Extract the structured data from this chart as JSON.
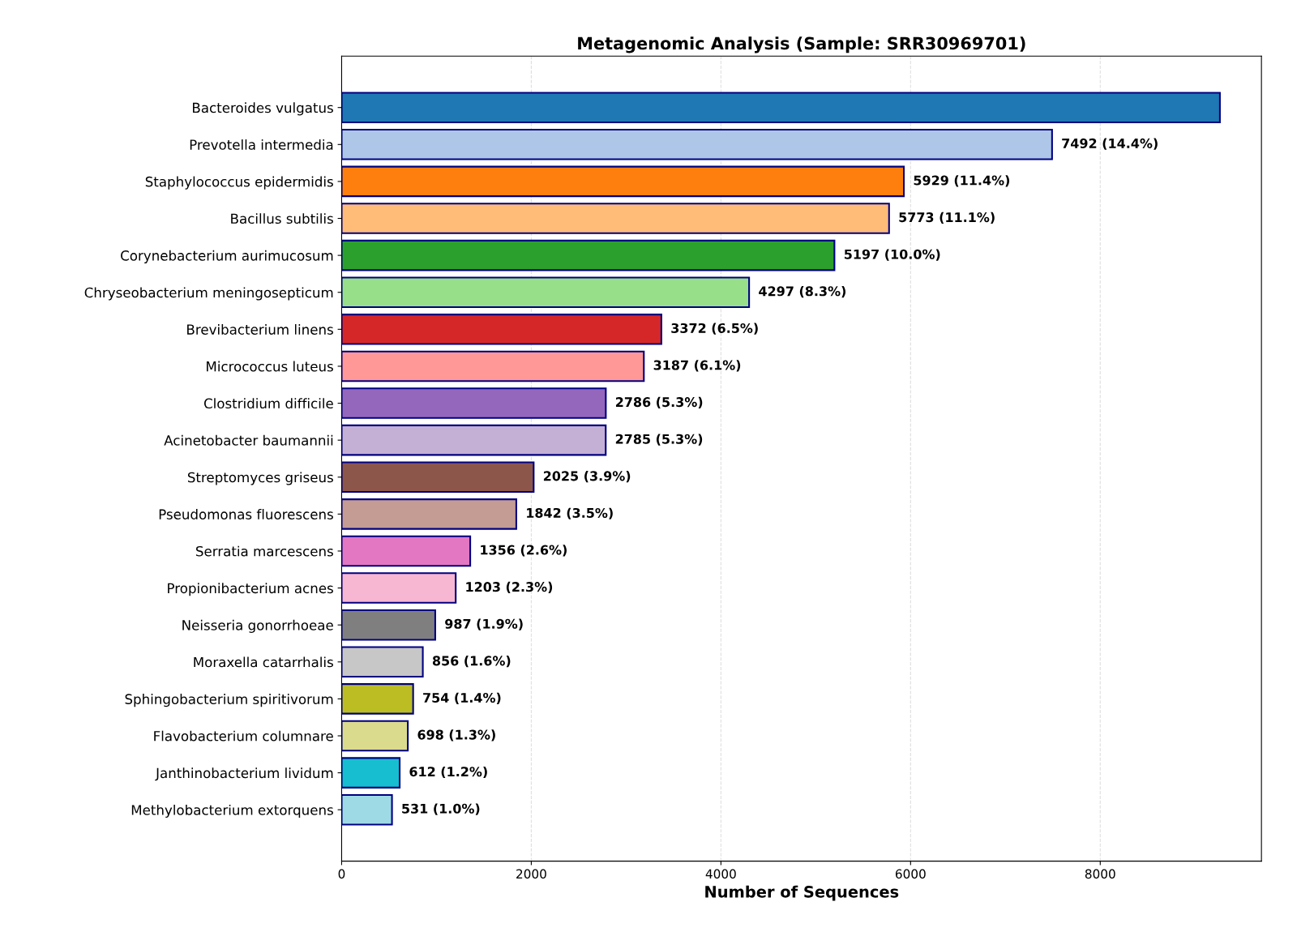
{
  "chart_data": {
    "type": "bar",
    "orientation": "horizontal",
    "title": "Metagenomic Analysis (Sample: SRR30969701)",
    "xlabel": "Number of Sequences",
    "categories": [
      "Bacteroides vulgatus",
      "Prevotella intermedia",
      "Staphylococcus epidermidis",
      "Bacillus subtilis",
      "Corynebacterium aurimucosum",
      "Chryseobacterium meningosepticum",
      "Brevibacterium linens",
      "Micrococcus luteus",
      "Clostridium difficile",
      "Acinetobacter baumannii",
      "Streptomyces griseus",
      "Pseudomonas fluorescens",
      "Serratia marcescens",
      "Propionibacterium acnes",
      "Neisseria gonorrhoeae",
      "Moraxella catarrhalis",
      "Sphingobacterium spiritivorum",
      "Flavobacterium columnare",
      "Janthinobacterium lividum",
      "Methylobacterium extorquens"
    ],
    "values": [
      9262,
      7492,
      5929,
      5773,
      5197,
      4297,
      3372,
      3187,
      2786,
      2785,
      2025,
      1842,
      1356,
      1203,
      987,
      856,
      754,
      698,
      612,
      531
    ],
    "colors": [
      "#1f77b4",
      "#aec7e8",
      "#ff7f0e",
      "#ffbb78",
      "#2ca02c",
      "#98df8a",
      "#d62728",
      "#ff9896",
      "#9467bd",
      "#c5b0d5",
      "#8c564b",
      "#c49c94",
      "#e377c2",
      "#f7b6d2",
      "#7f7f7f",
      "#c7c7c7",
      "#bcbd22",
      "#dbdb8d",
      "#17becf",
      "#9edae5"
    ],
    "value_labels": [
      null,
      "7492 (14.4%)",
      "5929 (11.4%)",
      "5773 (11.1%)",
      "5197 (10.0%)",
      "4297 (8.3%)",
      "3372 (6.5%)",
      "3187 (6.1%)",
      "2786 (5.3%)",
      "2785 (5.3%)",
      "2025 (3.9%)",
      "1842 (3.5%)",
      "1356 (2.6%)",
      "1203 (2.3%)",
      "987 (1.9%)",
      "856 (1.6%)",
      "754 (1.4%)",
      "698 (1.3%)",
      "612 (1.2%)",
      "531 (1.0%)"
    ],
    "xlim": [
      0,
      9700
    ],
    "xticks": [
      0,
      2000,
      4000,
      6000,
      8000
    ],
    "grid": "x",
    "legend": false
  }
}
